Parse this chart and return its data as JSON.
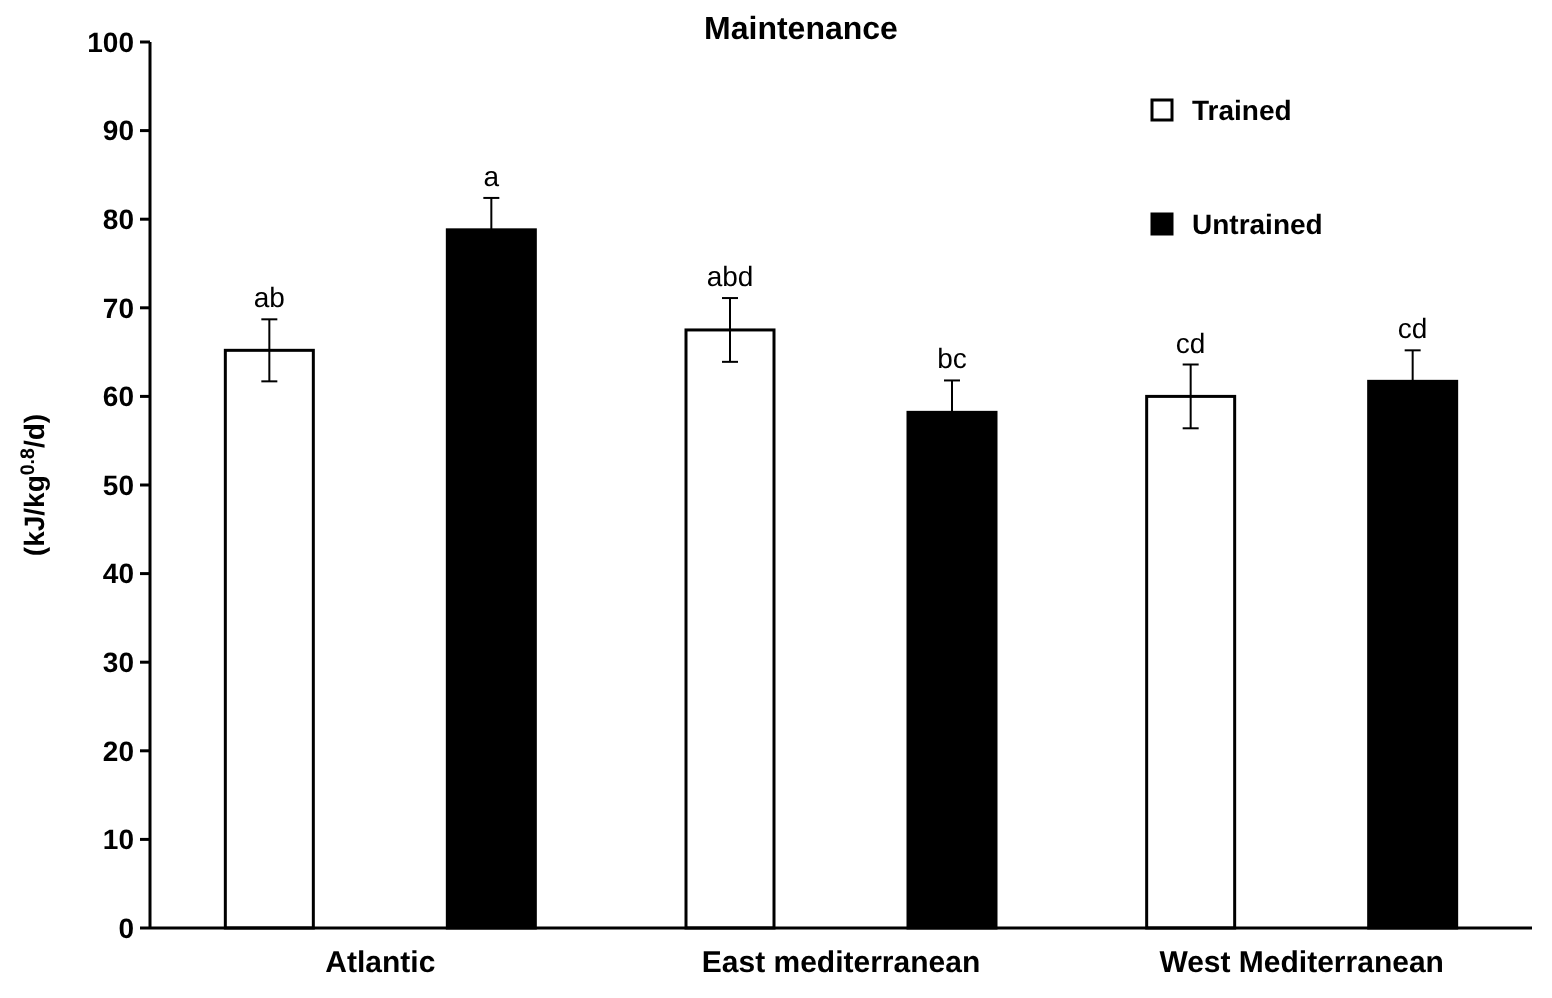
{
  "chart_data": {
    "type": "bar",
    "title": "Maintenance",
    "ylabel": "(kJ/kg$^{0.8}$/d)",
    "categories": [
      "Atlantic",
      "East mediterranean",
      "West Mediterranean"
    ],
    "series": [
      {
        "name": "Trained",
        "color": "#ffffff",
        "values": [
          65.2,
          67.5,
          60
        ],
        "errors": [
          3.5,
          3.6,
          3.6
        ]
      },
      {
        "name": "Untrained",
        "color": "#000000",
        "values": [
          78.8,
          58.2,
          61.7
        ],
        "errors": [
          3.6,
          3.6,
          3.5
        ]
      }
    ],
    "ylim": [
      0,
      100
    ],
    "yticks": [
      0,
      10,
      20,
      30,
      40,
      50,
      60,
      70,
      80,
      90,
      100
    ],
    "grid": false,
    "legend": "top right",
    "annotations": [
      "ab",
      "a",
      "abd",
      "bc",
      "cd",
      "cd"
    ]
  }
}
